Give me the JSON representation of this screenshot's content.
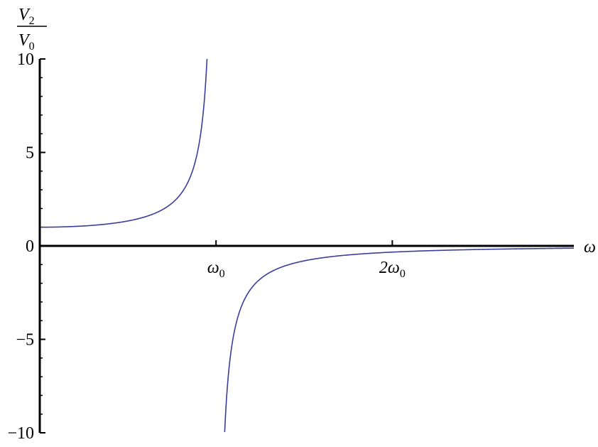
{
  "chart_data": {
    "type": "line",
    "xlabel": "ω",
    "ylabel": {
      "numerator": "V",
      "numerator_sub": "2",
      "denominator": "V",
      "denominator_sub": "0"
    },
    "xlim": [
      0,
      3.03
    ],
    "ylim": [
      -10,
      10
    ],
    "x_ticks": [
      {
        "value": 1,
        "label": "ω",
        "sub": "0"
      },
      {
        "value": 2,
        "label": "2ω",
        "sub": "0"
      }
    ],
    "y_ticks": [
      {
        "value": 10,
        "label": "10"
      },
      {
        "value": 5,
        "label": "5"
      },
      {
        "value": 0,
        "label": "0"
      },
      {
        "value": -5,
        "label": "−5"
      },
      {
        "value": -10,
        "label": "−10"
      }
    ],
    "function": "1 / (1 - (ω/ω0)^2)",
    "series": [
      {
        "x": [
          0,
          0.25,
          0.5,
          0.6,
          0.7,
          0.8,
          0.85,
          0.9,
          0.92,
          0.949
        ],
        "y": [
          1,
          1.07,
          1.33,
          1.56,
          1.96,
          2.78,
          3.6,
          5.26,
          6.51,
          10
        ],
        "color": "#3b3d9a"
      },
      {
        "x": [
          1.049,
          1.08,
          1.1,
          1.15,
          1.2,
          1.3,
          1.5,
          2.0,
          2.5,
          3.03
        ],
        "y": [
          -10,
          -6.01,
          -4.76,
          -3.1,
          -2.27,
          -1.45,
          -0.8,
          -0.33,
          -0.19,
          -0.12
        ],
        "color": "#3b3d9a"
      }
    ],
    "grid": false,
    "legend": "none"
  }
}
